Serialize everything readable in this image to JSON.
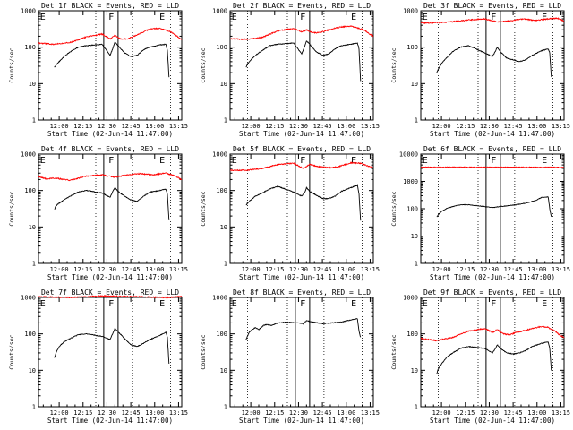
{
  "chart_data": [
    {
      "type": "line",
      "det": "1f",
      "title": "Det 1f BLACK = Events, RED = LLD",
      "xlabel": "Start Time (02-Jun-14 11:47:00)",
      "ylabel": "Counts/sec",
      "xticks": [
        "12:00",
        "12:15",
        "12:30",
        "12:45",
        "13:00",
        "13:15"
      ],
      "yticks": [
        "1",
        "10",
        "100",
        "1000"
      ],
      "ylim": [
        1,
        1000
      ],
      "markers": [
        "E",
        "F",
        "E"
      ],
      "series": [
        {
          "name": "RED = LLD",
          "color": "#ff0000",
          "x": [
            0,
            10,
            20,
            30,
            40,
            45,
            48,
            52,
            56,
            60,
            64,
            70,
            76,
            80,
            84,
            87,
            90
          ],
          "values": [
            130,
            120,
            135,
            190,
            230,
            170,
            210,
            165,
            170,
            200,
            240,
            320,
            330,
            300,
            250,
            200,
            160
          ]
        },
        {
          "name": "BLACK = Events",
          "color": "#000000",
          "x": [
            10,
            11,
            13,
            16,
            20,
            25,
            30,
            40,
            45,
            47,
            48,
            50,
            54,
            58,
            62,
            66,
            70,
            76,
            80,
            81,
            82
          ],
          "values": [
            28,
            32,
            40,
            55,
            75,
            100,
            110,
            120,
            60,
            100,
            140,
            110,
            70,
            55,
            60,
            85,
            100,
            115,
            120,
            80,
            15
          ]
        }
      ]
    },
    {
      "type": "line",
      "det": "2f",
      "title": "Det 2f BLACK = Events, RED = LLD",
      "xlabel": "Start Time (02-Jun-14 11:47:00)",
      "ylabel": "Counts/sec",
      "xticks": [
        "12:00",
        "12:15",
        "12:30",
        "12:45",
        "13:00",
        "13:15"
      ],
      "yticks": [
        "1",
        "10",
        "100",
        "1000"
      ],
      "ylim": [
        1,
        1000
      ],
      "markers": [
        "E",
        "F",
        "E"
      ],
      "series": [
        {
          "name": "RED = LLD",
          "color": "#ff0000",
          "x": [
            0,
            10,
            20,
            30,
            40,
            45,
            48,
            52,
            56,
            60,
            64,
            70,
            76,
            80,
            84,
            87,
            90
          ],
          "values": [
            170,
            165,
            185,
            280,
            330,
            260,
            300,
            250,
            250,
            280,
            320,
            360,
            380,
            340,
            300,
            240,
            200
          ]
        },
        {
          "name": "BLACK = Events",
          "color": "#000000",
          "x": [
            10,
            11,
            13,
            16,
            20,
            25,
            30,
            40,
            45,
            47,
            48,
            50,
            54,
            58,
            62,
            66,
            70,
            76,
            80,
            81,
            82
          ],
          "values": [
            28,
            35,
            45,
            60,
            80,
            110,
            120,
            130,
            65,
            110,
            150,
            120,
            75,
            60,
            65,
            90,
            110,
            120,
            130,
            90,
            12
          ]
        }
      ]
    },
    {
      "type": "line",
      "det": "3f",
      "title": "Det 3f BLACK = Events, RED = LLD",
      "xlabel": "Start Time (02-Jun-14 11:47:00)",
      "ylabel": "Counts/sec",
      "xticks": [
        "12:00",
        "12:15",
        "12:30",
        "12:45",
        "13:00",
        "13:15"
      ],
      "yticks": [
        "1",
        "10",
        "100",
        "1000"
      ],
      "ylim": [
        1,
        1000
      ],
      "markers": [
        "E",
        "F",
        "E"
      ],
      "series": [
        {
          "name": "RED = LLD",
          "color": "#ff0000",
          "x": [
            0,
            10,
            20,
            30,
            40,
            48,
            56,
            64,
            72,
            80,
            86,
            90
          ],
          "values": [
            460,
            470,
            500,
            560,
            600,
            500,
            520,
            600,
            540,
            600,
            620,
            520
          ]
        },
        {
          "name": "BLACK = Events",
          "color": "#000000",
          "x": [
            10,
            11,
            13,
            16,
            20,
            25,
            30,
            40,
            45,
            47,
            48,
            50,
            54,
            58,
            62,
            66,
            70,
            76,
            80,
            81,
            82
          ],
          "values": [
            20,
            25,
            35,
            50,
            75,
            100,
            110,
            70,
            55,
            80,
            100,
            75,
            50,
            45,
            40,
            45,
            60,
            80,
            90,
            70,
            15
          ]
        }
      ]
    },
    {
      "type": "line",
      "det": "4f",
      "title": "Det 4f BLACK = Events, RED = LLD",
      "xlabel": "Start Time (02-Jun-14 11:47:00)",
      "ylabel": "Counts/sec",
      "xticks": [
        "12:00",
        "12:15",
        "12:30",
        "12:45",
        "13:00",
        "13:15"
      ],
      "yticks": [
        "1",
        "10",
        "100",
        "1000"
      ],
      "ylim": [
        1,
        1000
      ],
      "markers": [
        "E",
        "F",
        "E"
      ],
      "series": [
        {
          "name": "RED = LLD",
          "color": "#ff0000",
          "x": [
            0,
            5,
            10,
            20,
            30,
            40,
            48,
            56,
            64,
            72,
            80,
            86,
            90
          ],
          "values": [
            240,
            210,
            220,
            190,
            250,
            270,
            230,
            270,
            290,
            270,
            300,
            250,
            200
          ]
        },
        {
          "name": "BLACK = Events",
          "color": "#000000",
          "x": [
            10,
            11,
            13,
            16,
            20,
            25,
            30,
            40,
            45,
            47,
            48,
            50,
            54,
            58,
            62,
            66,
            70,
            76,
            80,
            81,
            82
          ],
          "values": [
            30,
            38,
            45,
            55,
            70,
            90,
            100,
            85,
            65,
            100,
            120,
            95,
            70,
            55,
            50,
            70,
            90,
            100,
            110,
            80,
            15
          ]
        }
      ]
    },
    {
      "type": "line",
      "det": "5f",
      "title": "Det 5f BLACK = Events, RED = LLD",
      "xlabel": "Start Time (02-Jun-14 11:47:00)",
      "ylabel": "Counts/sec",
      "xticks": [
        "12:00",
        "12:15",
        "12:30",
        "12:45",
        "13:00",
        "13:15"
      ],
      "yticks": [
        "1",
        "10",
        "100",
        "1000"
      ],
      "ylim": [
        1,
        1000
      ],
      "markers": [
        "E",
        "F",
        "E"
      ],
      "series": [
        {
          "name": "RED = LLD",
          "color": "#ff0000",
          "x": [
            0,
            10,
            20,
            30,
            40,
            46,
            50,
            56,
            62,
            68,
            76,
            82,
            86,
            90
          ],
          "values": [
            360,
            360,
            400,
            520,
            560,
            400,
            520,
            450,
            420,
            450,
            580,
            560,
            480,
            420
          ]
        },
        {
          "name": "BLACK = Events",
          "color": "#000000",
          "x": [
            10,
            11,
            13,
            16,
            20,
            25,
            30,
            40,
            45,
            47,
            48,
            50,
            54,
            58,
            62,
            66,
            70,
            76,
            80,
            81,
            82
          ],
          "values": [
            40,
            45,
            55,
            70,
            85,
            110,
            130,
            90,
            70,
            90,
            120,
            95,
            75,
            60,
            60,
            70,
            95,
            120,
            140,
            80,
            15
          ]
        }
      ]
    },
    {
      "type": "line",
      "det": "6f",
      "title": "Det 6f BLACK = Events, RED = LLD",
      "xlabel": "Start Time (02-Jun-14 11:47:00)",
      "ylabel": "Counts/sec",
      "xticks": [
        "12:00",
        "12:15",
        "12:30",
        "12:45",
        "13:00",
        "13:15"
      ],
      "yticks": [
        "1",
        "10",
        "100",
        "1000",
        "10000"
      ],
      "ylim": [
        1,
        10000
      ],
      "markers": [
        "E",
        "F",
        "E"
      ],
      "series": [
        {
          "name": "RED = LLD",
          "color": "#ff0000",
          "x": [
            0,
            20,
            40,
            60,
            80,
            90
          ],
          "values": [
            3300,
            3350,
            3300,
            3300,
            3300,
            3250
          ]
        },
        {
          "name": "BLACK = Events",
          "color": "#000000",
          "x": [
            10,
            11,
            13,
            16,
            20,
            25,
            30,
            40,
            45,
            50,
            55,
            60,
            66,
            72,
            76,
            80,
            81,
            82
          ],
          "values": [
            50,
            60,
            80,
            100,
            120,
            140,
            140,
            120,
            110,
            120,
            130,
            140,
            160,
            200,
            260,
            270,
            100,
            50
          ]
        }
      ]
    },
    {
      "type": "line",
      "det": "7f",
      "title": "Det 7f BLACK = Events, RED = LLD",
      "xlabel": "Start Time (02-Jun-14 11:47:00)",
      "ylabel": "Counts/sec",
      "xticks": [
        "12:00",
        "12:15",
        "12:30",
        "12:45",
        "13:00",
        "13:15"
      ],
      "yticks": [
        "1",
        "10",
        "100",
        "1000"
      ],
      "ylim": [
        1,
        1000
      ],
      "markers": [
        "E",
        "F",
        "E"
      ],
      "series": [
        {
          "name": "RED = LLD",
          "color": "#ff0000",
          "x": [
            0,
            20,
            40,
            60,
            80,
            90
          ],
          "values": [
            1050,
            1000,
            1100,
            1050,
            1000,
            1050
          ]
        },
        {
          "name": "BLACK = Events",
          "color": "#000000",
          "x": [
            10,
            11,
            13,
            16,
            20,
            25,
            30,
            40,
            45,
            47,
            48,
            50,
            54,
            58,
            62,
            66,
            70,
            76,
            80,
            81,
            82
          ],
          "values": [
            22,
            30,
            45,
            60,
            75,
            95,
            100,
            85,
            70,
            110,
            140,
            115,
            75,
            50,
            45,
            55,
            70,
            90,
            110,
            80,
            15
          ]
        }
      ]
    },
    {
      "type": "line",
      "det": "8f",
      "title": "Det 8f BLACK = Events, RED = LLD",
      "xlabel": "Start Time (02-Jun-14 11:47:00)",
      "ylabel": "Counts/sec",
      "xticks": [
        "12:00",
        "12:15",
        "12:30",
        "12:45",
        "13:00",
        "13:15"
      ],
      "yticks": [
        "1",
        "10",
        "100",
        "1000"
      ],
      "ylim": [
        1,
        1000
      ],
      "markers": [
        "E",
        "F",
        "E"
      ],
      "series": [
        {
          "name": "BLACK = Events",
          "color": "#000000",
          "x": [
            10,
            12,
            14,
            16,
            18,
            21,
            23,
            26,
            30,
            35,
            42,
            46,
            48,
            52,
            58,
            64,
            70,
            76,
            80,
            81,
            82
          ],
          "values": [
            70,
            110,
            130,
            150,
            130,
            170,
            180,
            170,
            200,
            210,
            200,
            190,
            230,
            210,
            190,
            200,
            210,
            240,
            260,
            120,
            80
          ]
        }
      ]
    },
    {
      "type": "line",
      "det": "9f",
      "title": "Det 9f BLACK = Events, RED = LLD",
      "xlabel": "Start Time (02-Jun-14 11:47:00)",
      "ylabel": "Counts/sec",
      "xticks": [
        "12:00",
        "12:15",
        "12:30",
        "12:45",
        "13:00",
        "13:15"
      ],
      "yticks": [
        "1",
        "10",
        "100",
        "1000"
      ],
      "ylim": [
        1,
        1000
      ],
      "markers": [
        "E",
        "F",
        "E"
      ],
      "series": [
        {
          "name": "RED = LLD",
          "color": "#ff0000",
          "x": [
            0,
            10,
            20,
            30,
            40,
            45,
            48,
            52,
            56,
            60,
            64,
            70,
            76,
            80,
            84,
            87,
            90
          ],
          "values": [
            75,
            65,
            80,
            120,
            140,
            110,
            130,
            100,
            95,
            110,
            120,
            140,
            160,
            150,
            120,
            95,
            80
          ]
        },
        {
          "name": "BLACK = Events",
          "color": "#000000",
          "x": [
            10,
            11,
            13,
            16,
            20,
            25,
            30,
            40,
            45,
            47,
            48,
            50,
            54,
            58,
            62,
            66,
            70,
            76,
            80,
            81,
            82
          ],
          "values": [
            8,
            11,
            15,
            22,
            30,
            40,
            45,
            40,
            30,
            40,
            50,
            40,
            30,
            28,
            30,
            35,
            45,
            55,
            60,
            40,
            10
          ]
        }
      ]
    }
  ]
}
